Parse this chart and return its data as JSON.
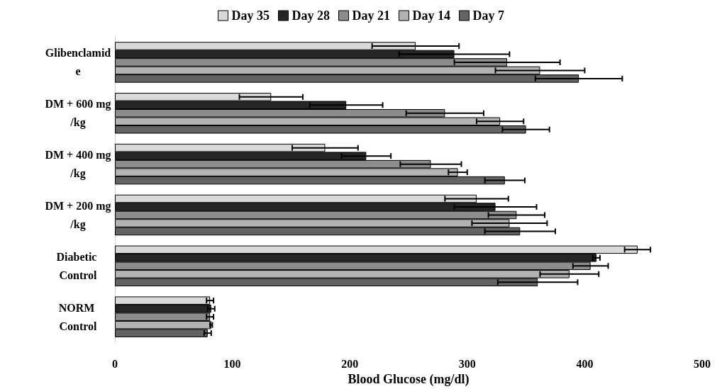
{
  "chart_data": {
    "type": "bar",
    "orientation": "horizontal",
    "xlabel": "Blood Glucose (mg/dl)",
    "categories": [
      "Glibenclamide",
      "DM + 600 mg/kg",
      "DM + 400 mg/kg",
      "DM + 200 mg/kg",
      "Diabetic Control",
      "NORM Control"
    ],
    "series": [
      {
        "name": "Day 35",
        "color": "#d9d9d9",
        "values": [
          256,
          133,
          179,
          308,
          445,
          81
        ],
        "errors": [
          37,
          27,
          28,
          27,
          11,
          3
        ]
      },
      {
        "name": "Day 28",
        "color": "#262626",
        "values": [
          289,
          197,
          214,
          324,
          410,
          82
        ],
        "errors": [
          47,
          31,
          21,
          35,
          3,
          3
        ]
      },
      {
        "name": "Day 21",
        "color": "#8c8c8c",
        "values": [
          334,
          281,
          269,
          342,
          405,
          81
        ],
        "errors": [
          45,
          33,
          26,
          24,
          15,
          3
        ]
      },
      {
        "name": "Day 14",
        "color": "#b3b3b3",
        "values": [
          362,
          328,
          292,
          336,
          387,
          82
        ],
        "errors": [
          38,
          20,
          8,
          32,
          25,
          1
        ]
      },
      {
        "name": "Day 7",
        "color": "#636363",
        "values": [
          395,
          350,
          332,
          345,
          360,
          79
        ],
        "errors": [
          37,
          20,
          17,
          30,
          34,
          3
        ]
      }
    ],
    "xlim": [
      0,
      500
    ],
    "xticks": [
      0,
      100,
      200,
      300,
      400,
      500
    ],
    "grid": false,
    "legend": "top"
  }
}
